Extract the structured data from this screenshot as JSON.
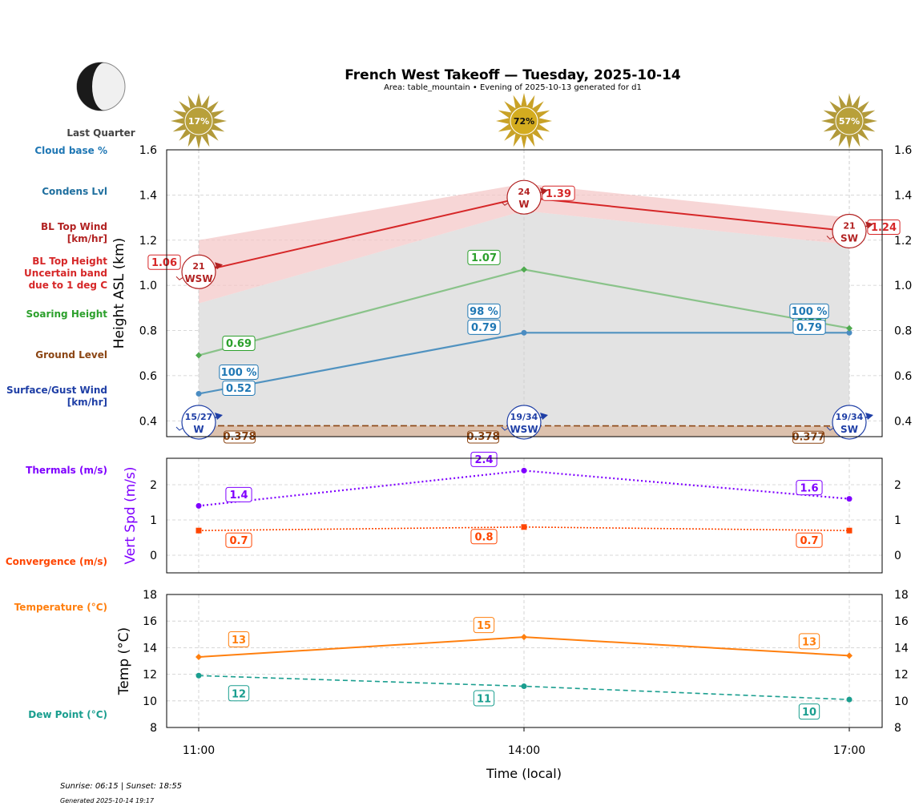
{
  "title": "French West Takeoff — Tuesday, 2025-10-14",
  "subtitle": "Area: table_mountain • Evening of 2025-10-13 generated for d1",
  "moon": {
    "phase": "Last Quarter"
  },
  "sun_icons": [
    {
      "time": "11:00",
      "label": "17%"
    },
    {
      "time": "14:00",
      "label": "72%"
    },
    {
      "time": "17:00",
      "label": "57%"
    }
  ],
  "footer": {
    "sun": "Sunrise: 06:15 | Sunset: 18:55",
    "generated": "Generated 2025-10-14 19:17"
  },
  "colors": {
    "bl_top": "#d62728",
    "soaring": "#2ca02c",
    "condens": "#1f77b4",
    "ground": "#8b4513",
    "surface_wind": "#1f3fa6",
    "thermal": "#7f00ff",
    "convergence": "#ff4500",
    "temperature": "#ff7f0e",
    "dewpoint": "#1a9e8f"
  },
  "chart_data": [
    {
      "type": "line",
      "panel": "height",
      "x": [
        "11:00",
        "14:00",
        "17:00"
      ],
      "ylabel": "Height ASL (km)",
      "ylim": [
        0.33,
        1.6
      ],
      "yticks": [
        "0.4",
        "0.6",
        "0.8",
        "1.0",
        "1.2",
        "1.4",
        "1.6"
      ],
      "grid": true,
      "row_labels": [
        "Cloud base %",
        "Condens Lvl",
        "BL Top Wind [km/hr]",
        "BL Top Height Uncertain band due to 1 deg C",
        "Soaring Height",
        "Ground Level",
        "Surface/Gust Wind [km/hr]"
      ],
      "series": {
        "bl_top": {
          "values": [
            1.06,
            1.39,
            1.24
          ],
          "band_low": [
            0.92,
            1.33,
            1.18
          ],
          "band_high": [
            1.2,
            1.45,
            1.3
          ]
        },
        "soaring": {
          "values": [
            0.69,
            1.07,
            0.81
          ]
        },
        "condens": {
          "values": [
            0.52,
            0.79,
            0.79
          ]
        },
        "cloud_base_pct": [
          "100 %",
          "98 %",
          "100 %"
        ],
        "ground": {
          "values": [
            0.378,
            0.378,
            0.377
          ]
        },
        "bl_wind": [
          {
            "speed": "21",
            "dir": "WSW"
          },
          {
            "speed": "24",
            "dir": "W"
          },
          {
            "speed": "21",
            "dir": "SW"
          }
        ],
        "surface_wind": [
          {
            "speed": "15/27",
            "dir": "W"
          },
          {
            "speed": "19/34",
            "dir": "WSW"
          },
          {
            "speed": "19/34",
            "dir": "SW"
          }
        ]
      }
    },
    {
      "type": "line",
      "panel": "vertical_speed",
      "x": [
        "11:00",
        "14:00",
        "17:00"
      ],
      "ylabel": "Vert Spd (m/s)",
      "ylim": [
        -0.5,
        2.75
      ],
      "yticks": [
        "0",
        "1",
        "2"
      ],
      "grid": true,
      "series": [
        {
          "name": "Thermals (m/s)",
          "values": [
            1.4,
            2.4,
            1.6
          ]
        },
        {
          "name": "Convergence (m/s)",
          "values": [
            0.7,
            0.8,
            0.7
          ]
        }
      ]
    },
    {
      "type": "line",
      "panel": "temperature",
      "x": [
        "11:00",
        "14:00",
        "17:00"
      ],
      "xlabel": "Time (local)",
      "ylabel": "Temp (°C)",
      "ylim": [
        8,
        18
      ],
      "yticks": [
        "8",
        "10",
        "12",
        "14",
        "16",
        "18"
      ],
      "grid": true,
      "series": [
        {
          "name": "Temperature (°C)",
          "values": [
            13.3,
            14.8,
            13.4
          ],
          "labels": [
            "13",
            "15",
            "13"
          ]
        },
        {
          "name": "Dew Point (°C)",
          "values": [
            11.9,
            11.1,
            10.1
          ],
          "labels": [
            "12",
            "11",
            "10"
          ]
        }
      ]
    }
  ]
}
